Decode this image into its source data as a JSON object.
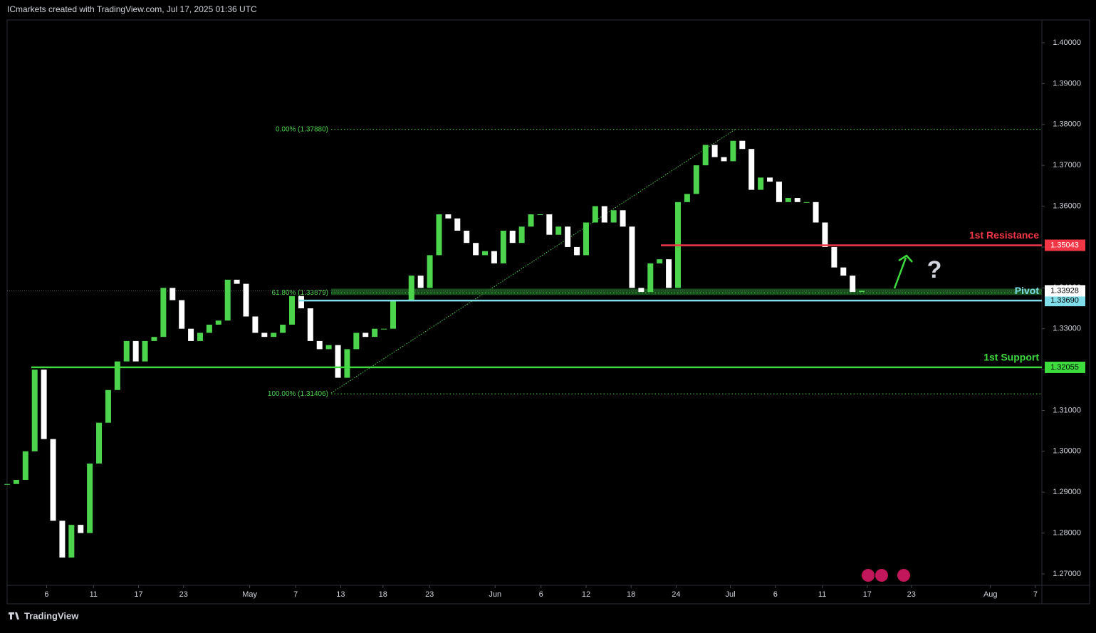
{
  "header": "ICmarkets created with TradingView.com, Jul 17, 2025 01:36 UTC",
  "footer": "TradingView",
  "chart_data": {
    "type": "candlestick",
    "x": [
      0,
      1,
      2,
      3,
      4,
      5,
      6,
      7,
      8,
      9,
      10,
      11,
      12,
      13,
      14,
      15,
      16,
      17,
      18,
      19,
      20,
      21,
      22,
      23,
      24,
      25,
      26,
      27,
      28,
      29,
      30,
      31,
      32,
      33,
      34,
      35,
      36,
      37,
      38,
      39,
      40,
      41,
      42,
      43,
      44,
      45,
      46,
      47,
      48,
      49,
      50,
      51,
      52,
      53,
      54,
      55,
      56,
      57,
      58,
      59,
      60,
      61,
      62,
      63,
      64,
      65,
      66,
      67,
      68,
      69,
      70,
      71,
      72,
      73,
      74,
      75,
      76,
      77,
      78,
      79,
      80,
      81,
      82,
      83,
      84,
      85,
      86,
      87,
      88,
      89,
      90,
      91,
      92,
      93
    ],
    "values": [
      1.292,
      1.293,
      1.3,
      1.32,
      1.303,
      1.283,
      1.274,
      1.282,
      1.28,
      1.297,
      1.307,
      1.315,
      1.322,
      1.327,
      1.322,
      1.327,
      1.328,
      1.34,
      1.337,
      1.33,
      1.327,
      1.329,
      1.331,
      1.332,
      1.342,
      1.341,
      1.333,
      1.329,
      1.328,
      1.329,
      1.331,
      1.338,
      1.335,
      1.327,
      1.325,
      1.326,
      1.318,
      1.325,
      1.329,
      1.328,
      1.33,
      1.33,
      1.337,
      1.337,
      1.343,
      1.34,
      1.348,
      1.358,
      1.357,
      1.354,
      1.351,
      1.348,
      1.349,
      1.346,
      1.354,
      1.351,
      1.355,
      1.358,
      1.358,
      1.353,
      1.355,
      1.35,
      1.348,
      1.356,
      1.36,
      1.356,
      1.359,
      1.355,
      1.34,
      1.339,
      1.346,
      1.347,
      1.34,
      1.361,
      1.363,
      1.37,
      1.375,
      1.372,
      1.371,
      1.376,
      1.374,
      1.364,
      1.367,
      1.366,
      1.361,
      1.362,
      1.361,
      1.361,
      1.356,
      1.35,
      1.345,
      1.343,
      1.339,
      1.3393
    ],
    "up_color": "#4cd44c",
    "down_color": "#ffffff",
    "xlim": [
      0,
      112.6
    ],
    "xticks": [
      {
        "value": 4.3,
        "label": "6"
      },
      {
        "value": 9.4,
        "label": "11"
      },
      {
        "value": 14.3,
        "label": "17"
      },
      {
        "value": 19.2,
        "label": "23"
      },
      {
        "value": 26.4,
        "label": "May"
      },
      {
        "value": 31.4,
        "label": "7"
      },
      {
        "value": 36.3,
        "label": "13"
      },
      {
        "value": 40.9,
        "label": "18"
      },
      {
        "value": 45.97,
        "label": "23"
      },
      {
        "value": 53.1,
        "label": "Jun"
      },
      {
        "value": 58.1,
        "label": "6"
      },
      {
        "value": 63,
        "label": "12"
      },
      {
        "value": 67.9,
        "label": "18"
      },
      {
        "value": 72.8,
        "label": "24"
      },
      {
        "value": 78.7,
        "label": "Jul"
      },
      {
        "value": 83.6,
        "label": "6"
      },
      {
        "value": 88.7,
        "label": "11"
      },
      {
        "value": 93.6,
        "label": "17"
      },
      {
        "value": 98.4,
        "label": "23"
      },
      {
        "value": 107,
        "label": "Aug"
      },
      {
        "value": 111.9,
        "label": "7"
      }
    ],
    "ylim": [
      1.26721,
      1.40558
    ],
    "yticks": [
      {
        "value": 1.27,
        "label": "1.27000"
      },
      {
        "value": 1.28,
        "label": "1.28000"
      },
      {
        "value": 1.29,
        "label": "1.29000"
      },
      {
        "value": 1.3,
        "label": "1.30000"
      },
      {
        "value": 1.31,
        "label": "1.31000"
      },
      {
        "value": 1.32,
        "label": "1.32000"
      },
      {
        "value": 1.33,
        "label": "1.33000"
      },
      {
        "value": 1.34,
        "label": "1.34000"
      },
      {
        "value": 1.35,
        "label": "1.35000"
      },
      {
        "value": 1.36,
        "label": "1.36000"
      },
      {
        "value": 1.37,
        "label": "1.37000"
      },
      {
        "value": 1.38,
        "label": "1.38000"
      },
      {
        "value": 1.39,
        "label": "1.39000"
      },
      {
        "value": 1.4,
        "label": "1.40000"
      }
    ],
    "levels": [
      {
        "name": "1st Resistance",
        "price": {
          "value": 1.35043,
          "label": "1.35043"
        },
        "color": "#f23645"
      },
      {
        "name": "Pivot",
        "price": {
          "value": 1.3369,
          "label": "1.33690"
        },
        "color": "#80deea"
      },
      {
        "name": "1st Support",
        "price": {
          "value": 1.32055,
          "label": "1.32055"
        },
        "color": "#3ddc3d"
      }
    ],
    "fib": [
      {
        "value": 1.3788,
        "label": "0.00% (1.37880)"
      },
      {
        "value": 1.33879,
        "label": "61.80% (1.33879)"
      },
      {
        "value": 1.31406,
        "label": "100.00% (1.31406)"
      }
    ],
    "fib_color": "#4cd44c",
    "last_price": 1.33928
  }
}
